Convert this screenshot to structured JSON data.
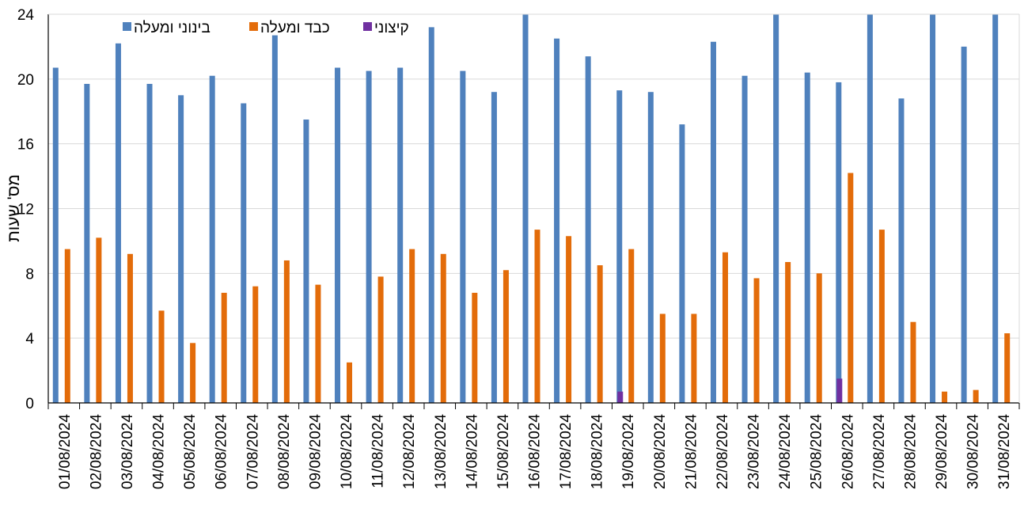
{
  "chart_data": {
    "type": "bar",
    "title": "",
    "xlabel": "",
    "ylabel": "מס' שעות",
    "ylim": [
      0,
      24
    ],
    "yticks": [
      0,
      4,
      8,
      12,
      16,
      20,
      24
    ],
    "grid": true,
    "legend": "top-left",
    "categories": [
      "01/08/2024",
      "02/08/2024",
      "03/08/2024",
      "04/08/2024",
      "05/08/2024",
      "06/08/2024",
      "07/08/2024",
      "08/08/2024",
      "09/08/2024",
      "10/08/2024",
      "11/08/2024",
      "12/08/2024",
      "13/08/2024",
      "14/08/2024",
      "15/08/2024",
      "16/08/2024",
      "17/08/2024",
      "18/08/2024",
      "19/08/2024",
      "20/08/2024",
      "21/08/2024",
      "22/08/2024",
      "23/08/2024",
      "24/08/2024",
      "25/08/2024",
      "26/08/2024",
      "27/08/2024",
      "28/08/2024",
      "29/08/2024",
      "30/08/2024",
      "31/08/2024"
    ],
    "series": [
      {
        "name": "בינוני ומעלה",
        "color": "#4f81bd",
        "values": [
          20.7,
          19.7,
          22.2,
          19.7,
          19.0,
          20.2,
          18.5,
          22.7,
          17.5,
          20.7,
          20.5,
          20.7,
          23.2,
          20.5,
          19.2,
          24.0,
          22.5,
          21.4,
          19.3,
          19.2,
          17.2,
          22.3,
          20.2,
          24.0,
          20.4,
          19.8,
          24.0,
          18.8,
          24.0,
          22.0,
          24.0
        ]
      },
      {
        "name": "כבד ומעלה",
        "color": "#e36c0a",
        "values": [
          9.5,
          10.2,
          9.2,
          5.7,
          3.7,
          6.8,
          7.2,
          8.8,
          7.3,
          2.5,
          7.8,
          9.5,
          9.2,
          6.8,
          8.2,
          10.7,
          10.3,
          8.5,
          9.5,
          5.5,
          5.5,
          9.3,
          7.7,
          8.7,
          8.0,
          14.2,
          10.7,
          5.0,
          0.7,
          0.8,
          4.3
        ]
      },
      {
        "name": "קיצוני",
        "color": "#7030a0",
        "values": [
          0,
          0,
          0,
          0,
          0,
          0,
          0,
          0,
          0,
          0,
          0,
          0,
          0,
          0,
          0,
          0,
          0,
          0,
          0.7,
          0,
          0,
          0,
          0,
          0,
          0,
          1.5,
          0,
          0,
          0,
          0,
          0
        ]
      }
    ]
  }
}
